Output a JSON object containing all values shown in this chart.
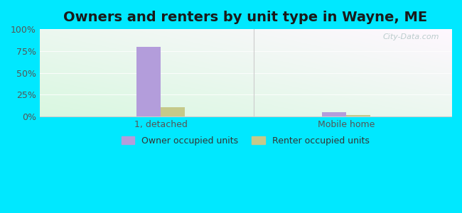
{
  "title": "Owners and renters by unit type in Wayne, ME",
  "categories": [
    "1, detached",
    "Mobile home"
  ],
  "owner_values": [
    80,
    5
  ],
  "renter_values": [
    11,
    2
  ],
  "owner_color": "#b39ddb",
  "renter_color": "#c5c98a",
  "ylim": [
    0,
    100
  ],
  "yticks": [
    0,
    25,
    50,
    75,
    100
  ],
  "ytick_labels": [
    "0%",
    "25%",
    "50%",
    "75%",
    "100%"
  ],
  "background_outer": "#00e8ff",
  "watermark": "City-Data.com",
  "legend_labels": [
    "Owner occupied units",
    "Renter occupied units"
  ],
  "bar_width": 0.3,
  "title_fontsize": 14,
  "axis_label_fontsize": 9,
  "legend_fontsize": 9,
  "group_positions": [
    1.2,
    3.5
  ]
}
